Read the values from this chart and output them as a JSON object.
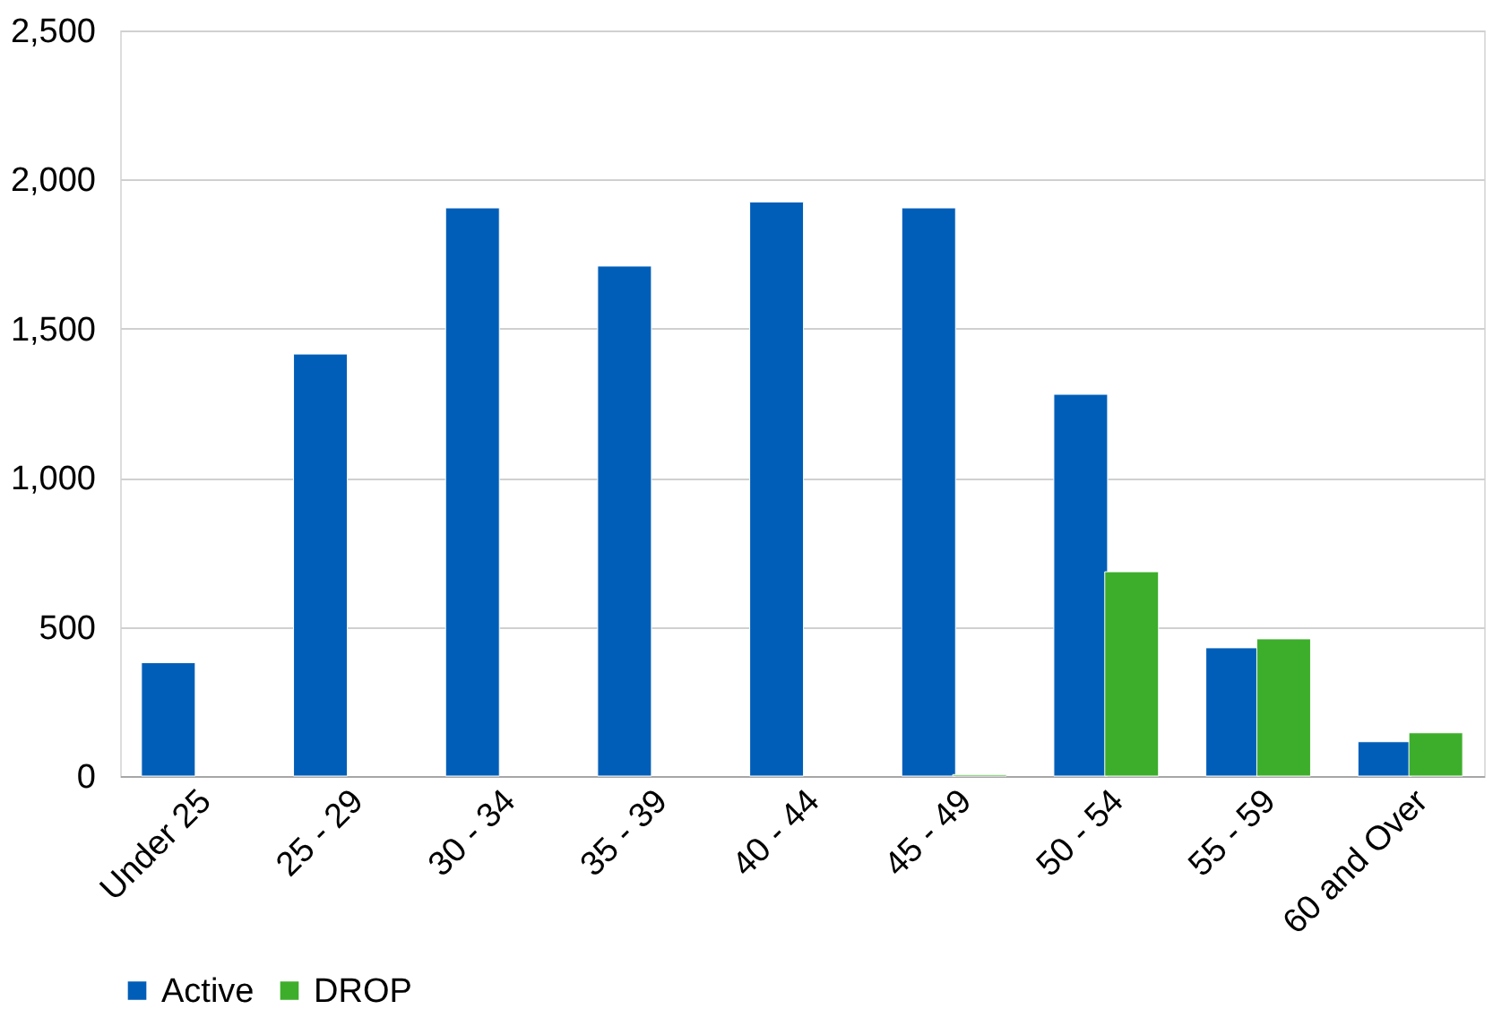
{
  "chart_data": {
    "type": "bar",
    "categories": [
      "Under 25",
      "25 - 29",
      "30 - 34",
      "35 - 39",
      "40 - 44",
      "45 - 49",
      "50 - 54",
      "55 - 59",
      "60 and Over"
    ],
    "series": [
      {
        "name": "Active",
        "color": "#005eb8",
        "values": [
          380,
          1415,
          1905,
          1710,
          1925,
          1905,
          1280,
          430,
          115
        ]
      },
      {
        "name": "DROP",
        "color": "#3dae2b",
        "values": [
          null,
          null,
          null,
          null,
          null,
          5,
          685,
          460,
          145
        ]
      }
    ],
    "ylim": [
      0,
      2500
    ],
    "yticks": [
      0,
      500,
      {
        "value": 1000,
        "label": "1,000"
      },
      {
        "value": 1500,
        "label": "1,500"
      },
      {
        "value": 2000,
        "label": "2,000"
      },
      {
        "value": 2500,
        "label": "2,500"
      }
    ],
    "grid": "y",
    "legend": "bottom"
  }
}
